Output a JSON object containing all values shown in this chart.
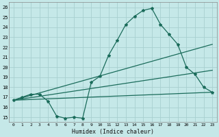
{
  "xlabel": "Humidex (Indice chaleur)",
  "background_color": "#c5e8e8",
  "grid_color": "#a8d0d0",
  "line_color": "#1a6b5a",
  "ylim": [
    14.5,
    26.5
  ],
  "xlim": [
    -0.5,
    23.5
  ],
  "yticks": [
    15,
    16,
    17,
    18,
    19,
    20,
    21,
    22,
    23,
    24,
    25,
    26
  ],
  "xticks": [
    0,
    1,
    2,
    3,
    4,
    5,
    6,
    7,
    8,
    9,
    10,
    11,
    12,
    13,
    14,
    15,
    16,
    17,
    18,
    19,
    20,
    21,
    22,
    23
  ],
  "series_main": {
    "x": [
      0,
      1,
      2,
      3,
      4,
      5,
      6,
      7,
      8,
      9,
      10,
      11,
      12,
      13,
      14,
      15,
      16,
      17,
      18,
      19,
      20,
      21,
      22,
      23
    ],
    "y": [
      16.7,
      17.0,
      17.3,
      17.3,
      16.6,
      15.1,
      14.9,
      15.0,
      14.9,
      18.5,
      19.1,
      21.2,
      22.7,
      24.3,
      25.1,
      25.7,
      25.9,
      24.3,
      23.3,
      22.3,
      20.0,
      19.3,
      18.0,
      17.5
    ]
  },
  "series_lines": [
    {
      "x": [
        0,
        23
      ],
      "y": [
        16.7,
        17.5
      ]
    },
    {
      "x": [
        0,
        23
      ],
      "y": [
        16.7,
        19.7
      ]
    },
    {
      "x": [
        0,
        23
      ],
      "y": [
        16.7,
        22.3
      ]
    }
  ]
}
